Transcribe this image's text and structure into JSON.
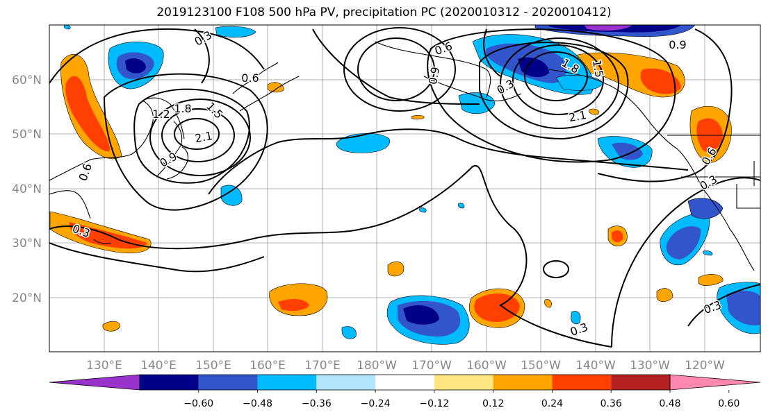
{
  "title": "2019123100 F108 500 hPa PV, precipitation PC (2020010312 - 2020010412)",
  "lat_labels": [
    "60°N",
    "50°N",
    "40°N",
    "30°N",
    "20°N"
  ],
  "lon_labels": [
    "130°E",
    "140°E",
    "150°E",
    "160°E",
    "170°E",
    "180°W",
    "170°W",
    "160°W",
    "150°W",
    "140°W",
    "130°W",
    "120°W"
  ],
  "contour_labels": [
    "0.3",
    "0.6",
    "0.9",
    "1.2",
    "1.5",
    "1.8",
    "2.1",
    "0.9",
    "0.6",
    "0.3",
    "1.5",
    "1.8",
    "2.1",
    "0.9",
    "0.6",
    "0.3",
    "0.3",
    "0.3",
    "0.3",
    "0.6"
  ],
  "colorbar": {
    "colors": [
      "#9933cc",
      "#000088",
      "#3355cc",
      "#00bbff",
      "#b3e6ff",
      "#ffffff",
      "#ffe680",
      "#ffa500",
      "#ff4000",
      "#b22222",
      "#ff88b0"
    ],
    "tick_labels": [
      "−0.60",
      "−0.48",
      "−0.36",
      "−0.24",
      "−0.12",
      "0.12",
      "0.24",
      "0.36",
      "0.48",
      "0.60"
    ]
  }
}
